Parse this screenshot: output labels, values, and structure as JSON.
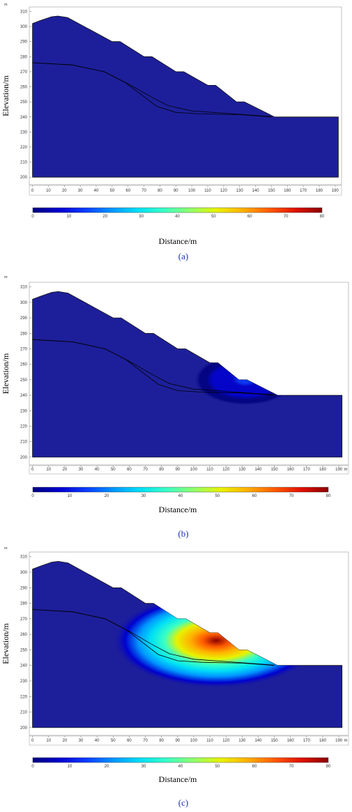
{
  "colors": {
    "base": "#1d1f9a",
    "colormap": [
      "#00007f",
      "#0000d0",
      "#0a3cff",
      "#0096ff",
      "#00e0f5",
      "#3bffc4",
      "#90ff6a",
      "#e8f200",
      "#ffb000",
      "#ff5a00",
      "#e01000",
      "#8b0000"
    ]
  },
  "chart_data": [
    {
      "type": "heatmap",
      "panel_label": "(a)",
      "xlabel": "Distance/m",
      "ylabel": "Elevation/m",
      "y_unit": "m",
      "x_unit": "",
      "xlim": [
        -2,
        194
      ],
      "ylim": [
        195,
        313
      ],
      "xticks": [
        0,
        10,
        20,
        30,
        40,
        50,
        60,
        70,
        80,
        90,
        100,
        110,
        120,
        130,
        140,
        150,
        160,
        170,
        180,
        190
      ],
      "yticks": [
        200,
        210,
        220,
        230,
        240,
        250,
        260,
        270,
        280,
        290,
        300,
        310
      ],
      "colorbar": {
        "min": 0,
        "max": 80,
        "ticks": [
          0,
          10,
          20,
          30,
          40,
          50,
          60,
          70,
          80
        ]
      },
      "hotspot": null
    },
    {
      "type": "heatmap",
      "panel_label": "(b)",
      "xlabel": "Distance/m",
      "ylabel": "Elevation/m",
      "y_unit": "m",
      "x_unit": "m",
      "xlim": [
        -2,
        196
      ],
      "ylim": [
        195,
        313
      ],
      "xticks": [
        0,
        10,
        20,
        30,
        40,
        50,
        60,
        70,
        80,
        90,
        100,
        110,
        120,
        130,
        140,
        150,
        160,
        170,
        180,
        190
      ],
      "yticks": [
        200,
        210,
        220,
        230,
        240,
        250,
        260,
        270,
        280,
        290,
        300,
        310
      ],
      "colorbar": {
        "min": 0,
        "max": 80,
        "ticks": [
          0,
          10,
          20,
          30,
          40,
          50,
          60,
          70,
          80
        ]
      },
      "hotspot": {
        "x": 132,
        "y": 250,
        "peak": 14,
        "rx": 14,
        "ry": 6
      }
    },
    {
      "type": "heatmap",
      "panel_label": "(c)",
      "xlabel": "Distance/m",
      "ylabel": "Elevation/m",
      "y_unit": "m",
      "x_unit": "m",
      "xlim": [
        -2,
        196
      ],
      "ylim": [
        195,
        313
      ],
      "xticks": [
        0,
        10,
        20,
        30,
        40,
        50,
        60,
        70,
        80,
        90,
        100,
        110,
        120,
        130,
        140,
        150,
        160,
        170,
        180,
        190
      ],
      "yticks": [
        200,
        210,
        220,
        230,
        240,
        250,
        260,
        270,
        280,
        290,
        300,
        310
      ],
      "colorbar": {
        "min": 0,
        "max": 80,
        "ticks": [
          0,
          10,
          20,
          30,
          40,
          50,
          60,
          70,
          80
        ]
      },
      "hotspot": {
        "x": 114,
        "y": 256,
        "peak": 78,
        "rx": 28,
        "ry": 11
      }
    }
  ]
}
